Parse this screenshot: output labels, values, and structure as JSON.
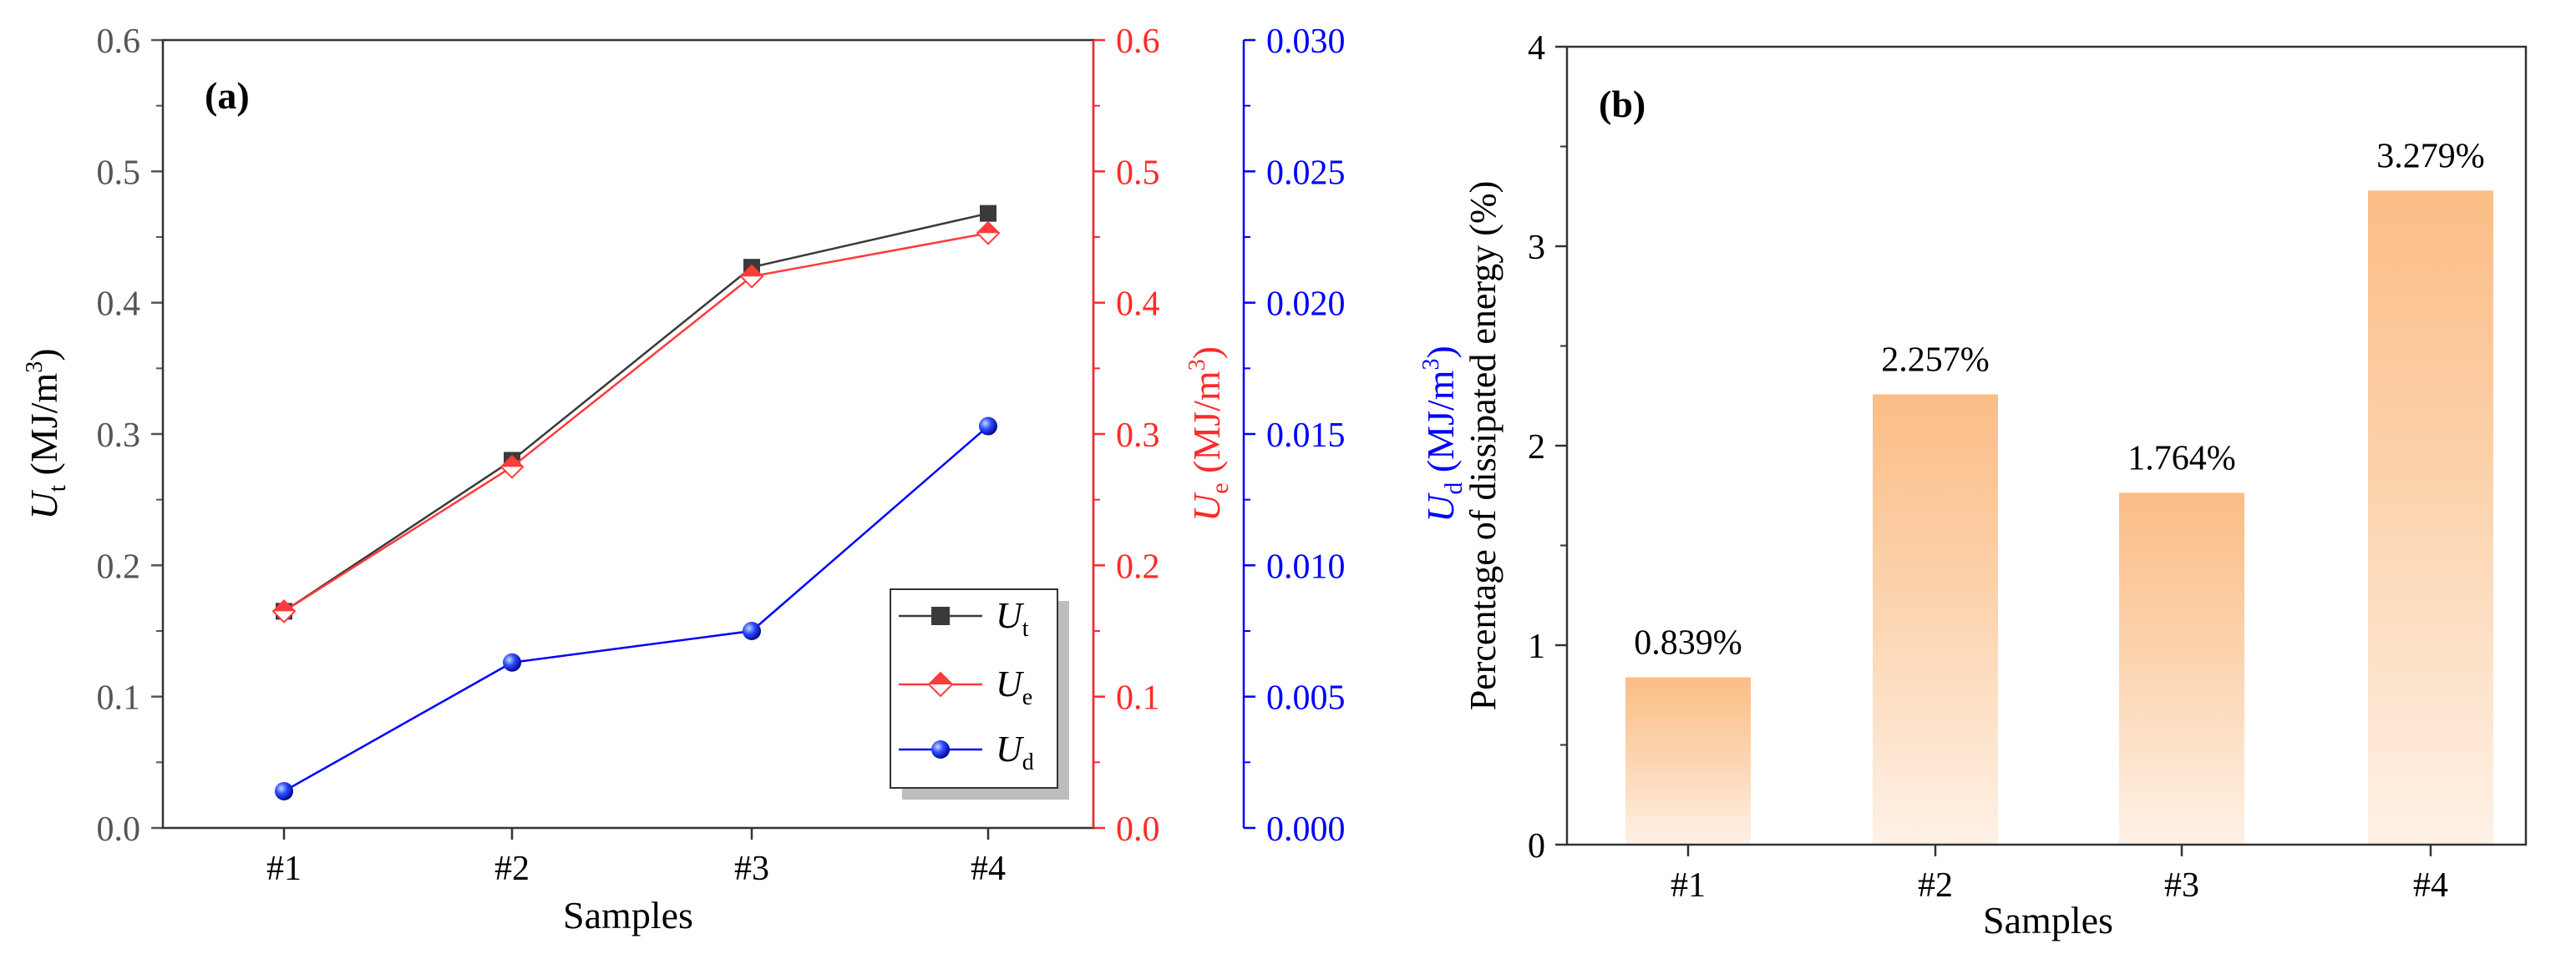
{
  "chart_data": [
    {
      "type": "line",
      "panel_label": "(a)",
      "xlabel": "Samples",
      "categories": [
        "#1",
        "#2",
        "#3",
        "#4"
      ],
      "axes": {
        "left": {
          "label_main": "U",
          "label_sub": "t",
          "label_unit": " (MJ/m",
          "label_sup": "3",
          "label_close": ")",
          "ylim": [
            0,
            0.6
          ],
          "ticks": [
            "0.0",
            "0.1",
            "0.2",
            "0.3",
            "0.4",
            "0.5",
            "0.6"
          ],
          "color": "#555555"
        },
        "right1": {
          "label_main": "U",
          "label_sub": "e",
          "label_unit": " (MJ/m",
          "label_sup": "3",
          "label_close": ")",
          "ylim": [
            0,
            0.6
          ],
          "ticks": [
            "0.0",
            "0.1",
            "0.2",
            "0.3",
            "0.4",
            "0.5",
            "0.6"
          ],
          "color": "#ff2a2a"
        },
        "right2": {
          "label_main": "U",
          "label_sub": "d",
          "label_unit": " (MJ/m",
          "label_sup": "3",
          "label_close": ")",
          "ylim": [
            0,
            0.03
          ],
          "ticks": [
            "0.000",
            "0.005",
            "0.010",
            "0.015",
            "0.020",
            "0.025",
            "0.030"
          ],
          "color": "#0000ff"
        }
      },
      "series": [
        {
          "name": "U",
          "sub": "t",
          "axis": "left",
          "values": [
            0.165,
            0.28,
            0.427,
            0.468
          ],
          "color": "#3a3a3a",
          "marker": "square"
        },
        {
          "name": "U",
          "sub": "e",
          "axis": "right1",
          "values": [
            0.165,
            0.275,
            0.42,
            0.453
          ],
          "color": "#ff3b3b",
          "marker": "diamond"
        },
        {
          "name": "U",
          "sub": "d",
          "axis": "right2",
          "values": [
            0.0014,
            0.0063,
            0.0075,
            0.0153
          ],
          "color": "#0000ff",
          "marker": "sphere"
        }
      ]
    },
    {
      "type": "bar",
      "panel_label": "(b)",
      "xlabel": "Samples",
      "ylabel": "Percentage of dissipated energy (%)",
      "categories": [
        "#1",
        "#2",
        "#3",
        "#4"
      ],
      "values": [
        0.839,
        2.257,
        1.764,
        3.279
      ],
      "data_labels": [
        "0.839%",
        "2.257%",
        "1.764%",
        "3.279%"
      ],
      "ylim": [
        0,
        4
      ],
      "ticks": [
        "0",
        "1",
        "2",
        "3",
        "4"
      ],
      "bar_color": "#fbbd86"
    }
  ]
}
